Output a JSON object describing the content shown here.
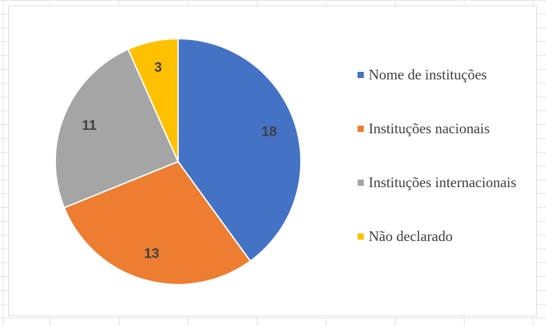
{
  "chart_data": {
    "type": "pie",
    "categories": [
      "Nome de instituções",
      "Instituções nacionais",
      "Instituções internacionais",
      "Não declarado"
    ],
    "values": [
      18,
      13,
      11,
      3
    ],
    "colors": [
      "#4472C4",
      "#ED7D31",
      "#A5A5A5",
      "#FFC000"
    ],
    "data_labels": [
      "18",
      "13",
      "11",
      "3"
    ],
    "start": "12 o'clock",
    "direction": "clockwise",
    "legend_position": "right"
  }
}
